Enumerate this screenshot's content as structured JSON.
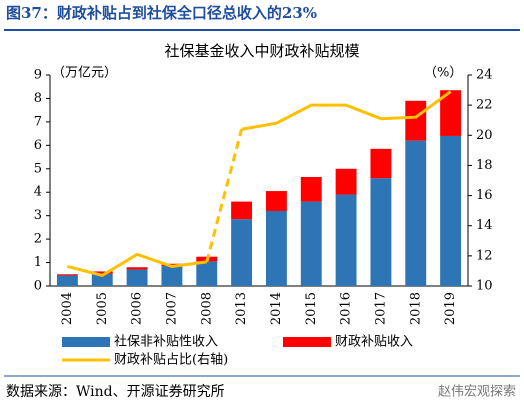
{
  "header": {
    "title": "图37：财政补贴占到社保全口径总收入的23%"
  },
  "chart_data": {
    "type": "bar",
    "stacked": true,
    "title": "社保基金收入中财政补贴规模",
    "y_label": "（万亿元）",
    "y2_label": "（%）",
    "categories": [
      "2004",
      "2005",
      "2006",
      "2007",
      "2008",
      "2013",
      "2014",
      "2015",
      "2016",
      "2017",
      "2018",
      "2019"
    ],
    "series": [
      {
        "name": "社保非补贴性收入",
        "type": "bar",
        "color": "#2e75b6",
        "values": [
          0.45,
          0.52,
          0.7,
          0.85,
          1.05,
          2.85,
          3.2,
          3.6,
          3.9,
          4.6,
          6.2,
          6.4
        ]
      },
      {
        "name": "财政补贴收入",
        "type": "bar",
        "color": "#ff0000",
        "values": [
          0.05,
          0.1,
          0.1,
          0.1,
          0.2,
          0.75,
          0.85,
          1.05,
          1.1,
          1.25,
          1.7,
          1.95
        ]
      },
      {
        "name": "财政补贴占比(右轴)",
        "type": "line",
        "axis": "y2",
        "color": "#ffc000",
        "values": [
          11.3,
          10.7,
          12.1,
          11.3,
          11.6,
          20.4,
          20.8,
          22.0,
          22.0,
          21.1,
          21.2,
          22.9
        ]
      }
    ],
    "ylim": [
      0,
      9
    ],
    "yticks": [
      0,
      1,
      2,
      3,
      4,
      5,
      6,
      7,
      8,
      9
    ],
    "y2lim": [
      10,
      24
    ],
    "y2ticks": [
      10,
      12,
      14,
      16,
      18,
      20,
      22,
      24
    ],
    "grid": false,
    "legend": "bottom"
  },
  "source": "数据来源：Wind、开源证券研究所",
  "watermark": "赵伟宏观探索"
}
